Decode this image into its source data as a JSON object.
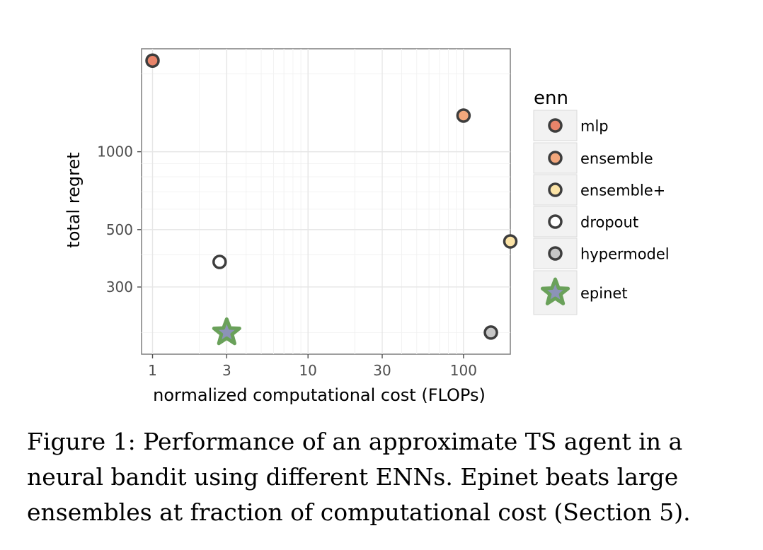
{
  "chart_data": {
    "type": "scatter",
    "title": "",
    "xlabel": "normalized computational cost (FLOPs)",
    "ylabel": "total regret",
    "x_scale": "log",
    "y_scale": "log",
    "xlim": [
      0.85,
      200
    ],
    "ylim": [
      165,
      2500
    ],
    "x_ticks": [
      1,
      3,
      10,
      30,
      100
    ],
    "x_tick_labels": [
      "1",
      "3",
      "10",
      "30",
      "100"
    ],
    "y_ticks": [
      300,
      500,
      1000
    ],
    "y_tick_labels": [
      "300",
      "500",
      "1000"
    ],
    "grid": true,
    "legend": {
      "title": "enn",
      "placement": "right"
    },
    "series": [
      {
        "name": "mlp",
        "marker": "circle",
        "color": "#e8846a",
        "x": [
          1
        ],
        "y": [
          2250
        ]
      },
      {
        "name": "ensemble",
        "marker": "circle",
        "color": "#f2a77c",
        "x": [
          100
        ],
        "y": [
          1380
        ]
      },
      {
        "name": "ensemble+",
        "marker": "circle",
        "color": "#fbe3a6",
        "x": [
          200
        ],
        "y": [
          450
        ]
      },
      {
        "name": "dropout",
        "marker": "circle",
        "color": "#ffffff",
        "x": [
          2.7
        ],
        "y": [
          375
        ]
      },
      {
        "name": "hypermodel",
        "marker": "circle",
        "color": "#c6c6c6",
        "x": [
          150
        ],
        "y": [
          200
        ]
      },
      {
        "name": "epinet",
        "marker": "star",
        "color": "#8c93b8",
        "x": [
          3
        ],
        "y": [
          200
        ]
      }
    ]
  },
  "caption": "Figure 1: Performance of an approximate TS agent in a neural bandit using different ENNs. Epinet beats large ensembles at fraction of computational cost (Section 5)."
}
